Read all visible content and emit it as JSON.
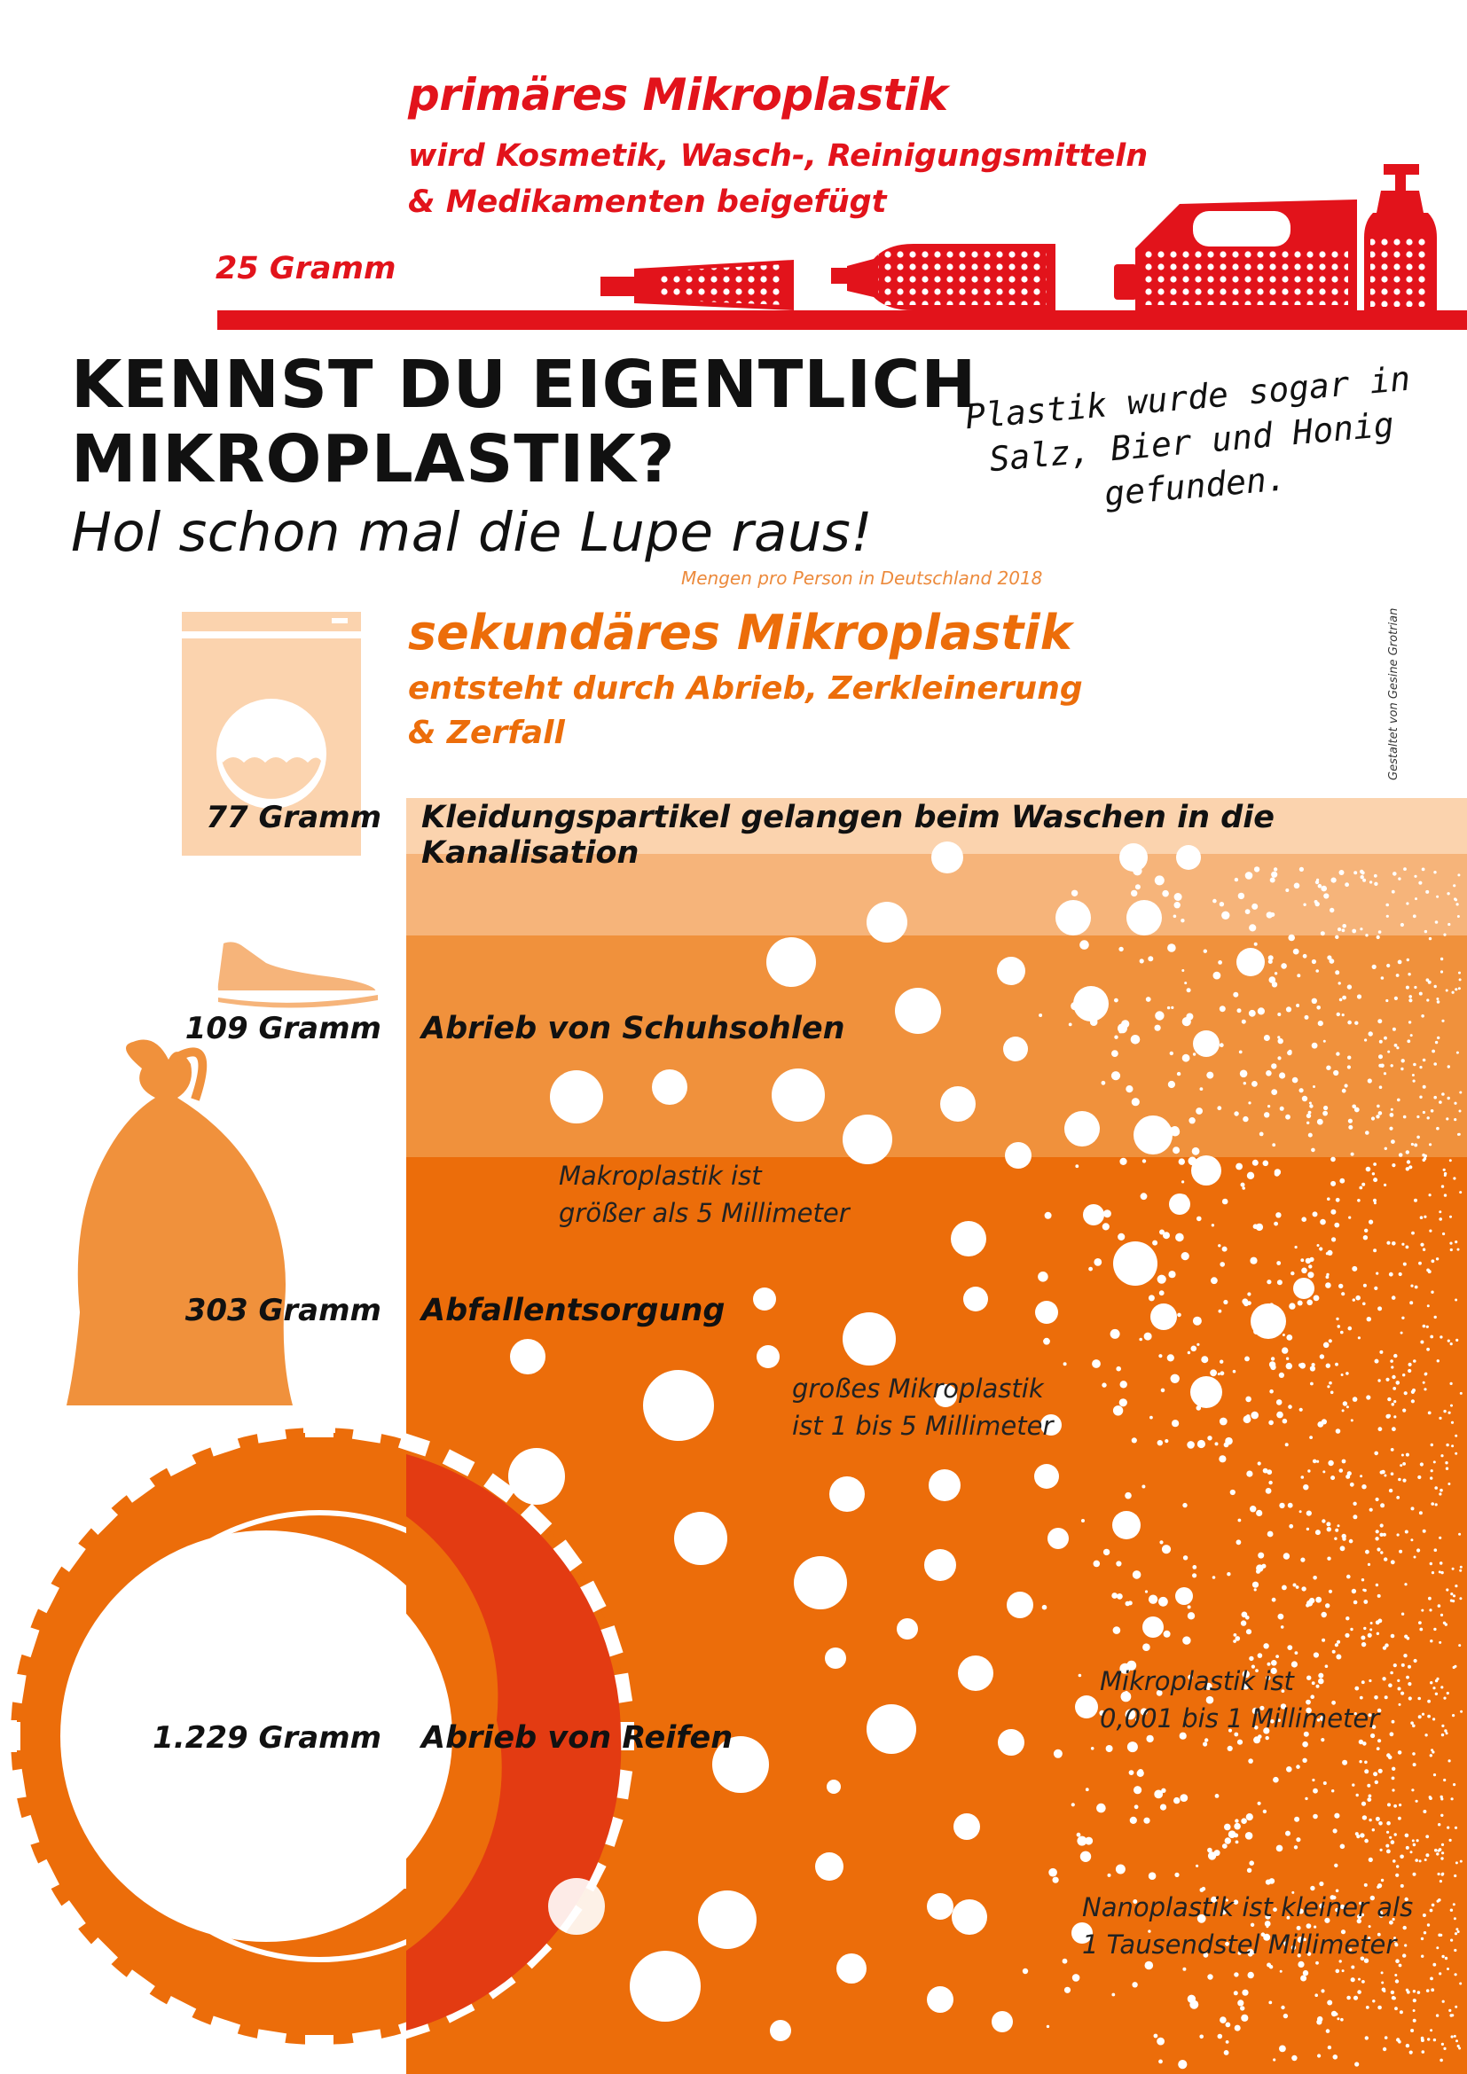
{
  "primary": {
    "title": "primäres Mikroplastik",
    "subtitle_line1": "wird Kosmetik, Wasch-, Reinigungsmitteln",
    "subtitle_line2": "& Medikamenten beigefügt",
    "amount": "25 Gramm"
  },
  "headline": {
    "line1": "KENNST DU EIGENTLICH",
    "line2": "MIKROPLASTIK?",
    "subtitle": "Hol schon mal die Lupe raus!"
  },
  "note": {
    "line1": "Plastik wurde sogar in",
    "line2": "Salz, Bier und Honig",
    "line3": "gefunden."
  },
  "source_note": "Mengen pro Person in Deutschland 2018",
  "credit": "Gestaltet von Gesine Grotrian",
  "secondary": {
    "title": "sekundäres Mikroplastik",
    "subtitle_line1": "entsteht durch Abrieb, Zerkleinerung",
    "subtitle_line2": "& Zerfall"
  },
  "sources": [
    {
      "amount": "77 Gramm",
      "label": "Kleidungspartikel gelangen beim Waschen in die Kanalisation",
      "grams": 77
    },
    {
      "amount": "109 Gramm",
      "label": "Abrieb von Schuhsohlen",
      "grams": 109
    },
    {
      "amount": "303 Gramm",
      "label": "Abfallentsorgung",
      "grams": 303
    },
    {
      "amount": "1.229 Gramm",
      "label": "Abrieb von Reifen",
      "grams": 1229
    }
  ],
  "sizes": {
    "makro_line1": "Makroplastik ist",
    "makro_line2": "größer als 5 Millimeter",
    "gross_line1": "großes Mikroplastik",
    "gross_line2": "ist 1 bis 5 Millimeter",
    "mikro_line1": "Mikroplastik ist",
    "mikro_line2": "0,001 bis 1 Millimeter",
    "nano_line1": "Nanoplastik ist kleiner als",
    "nano_line2": "1 Tausendstel Millimeter"
  },
  "colors": {
    "red": "#e2131b",
    "orange": "#ec6d0a",
    "orange_light": "#f6b47a",
    "orange_mid": "#f0913c",
    "orange_pale": "#fbd3ae",
    "tire_overlap": "#e33b12"
  },
  "icons": [
    "tube-icon",
    "bottle-icon",
    "canister-icon",
    "pump-dispenser-icon",
    "washing-machine-icon",
    "sneaker-icon",
    "garbage-bag-icon",
    "tire-icon"
  ]
}
